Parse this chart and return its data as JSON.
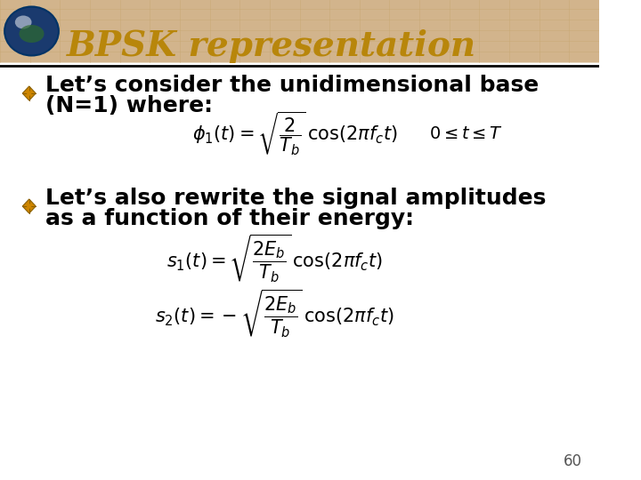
{
  "title": "BPSK representation",
  "title_color": "#B8860B",
  "title_fontsize": 28,
  "header_bg_color": "#D2B48C",
  "slide_bg_color": "#FFFFFF",
  "bullet_color": "#CD8500",
  "bullet1_line1": "Let’s consider the unidimensional base",
  "bullet1_line2": "(N=1) where:",
  "bullet2_line1": "Let’s also rewrite the signal amplitudes",
  "bullet2_line2": "as a function of their energy:",
  "text_color": "#000000",
  "text_fontsize": 18,
  "formula_fontsize": 16,
  "page_number": "60",
  "separator_color": "#000000"
}
